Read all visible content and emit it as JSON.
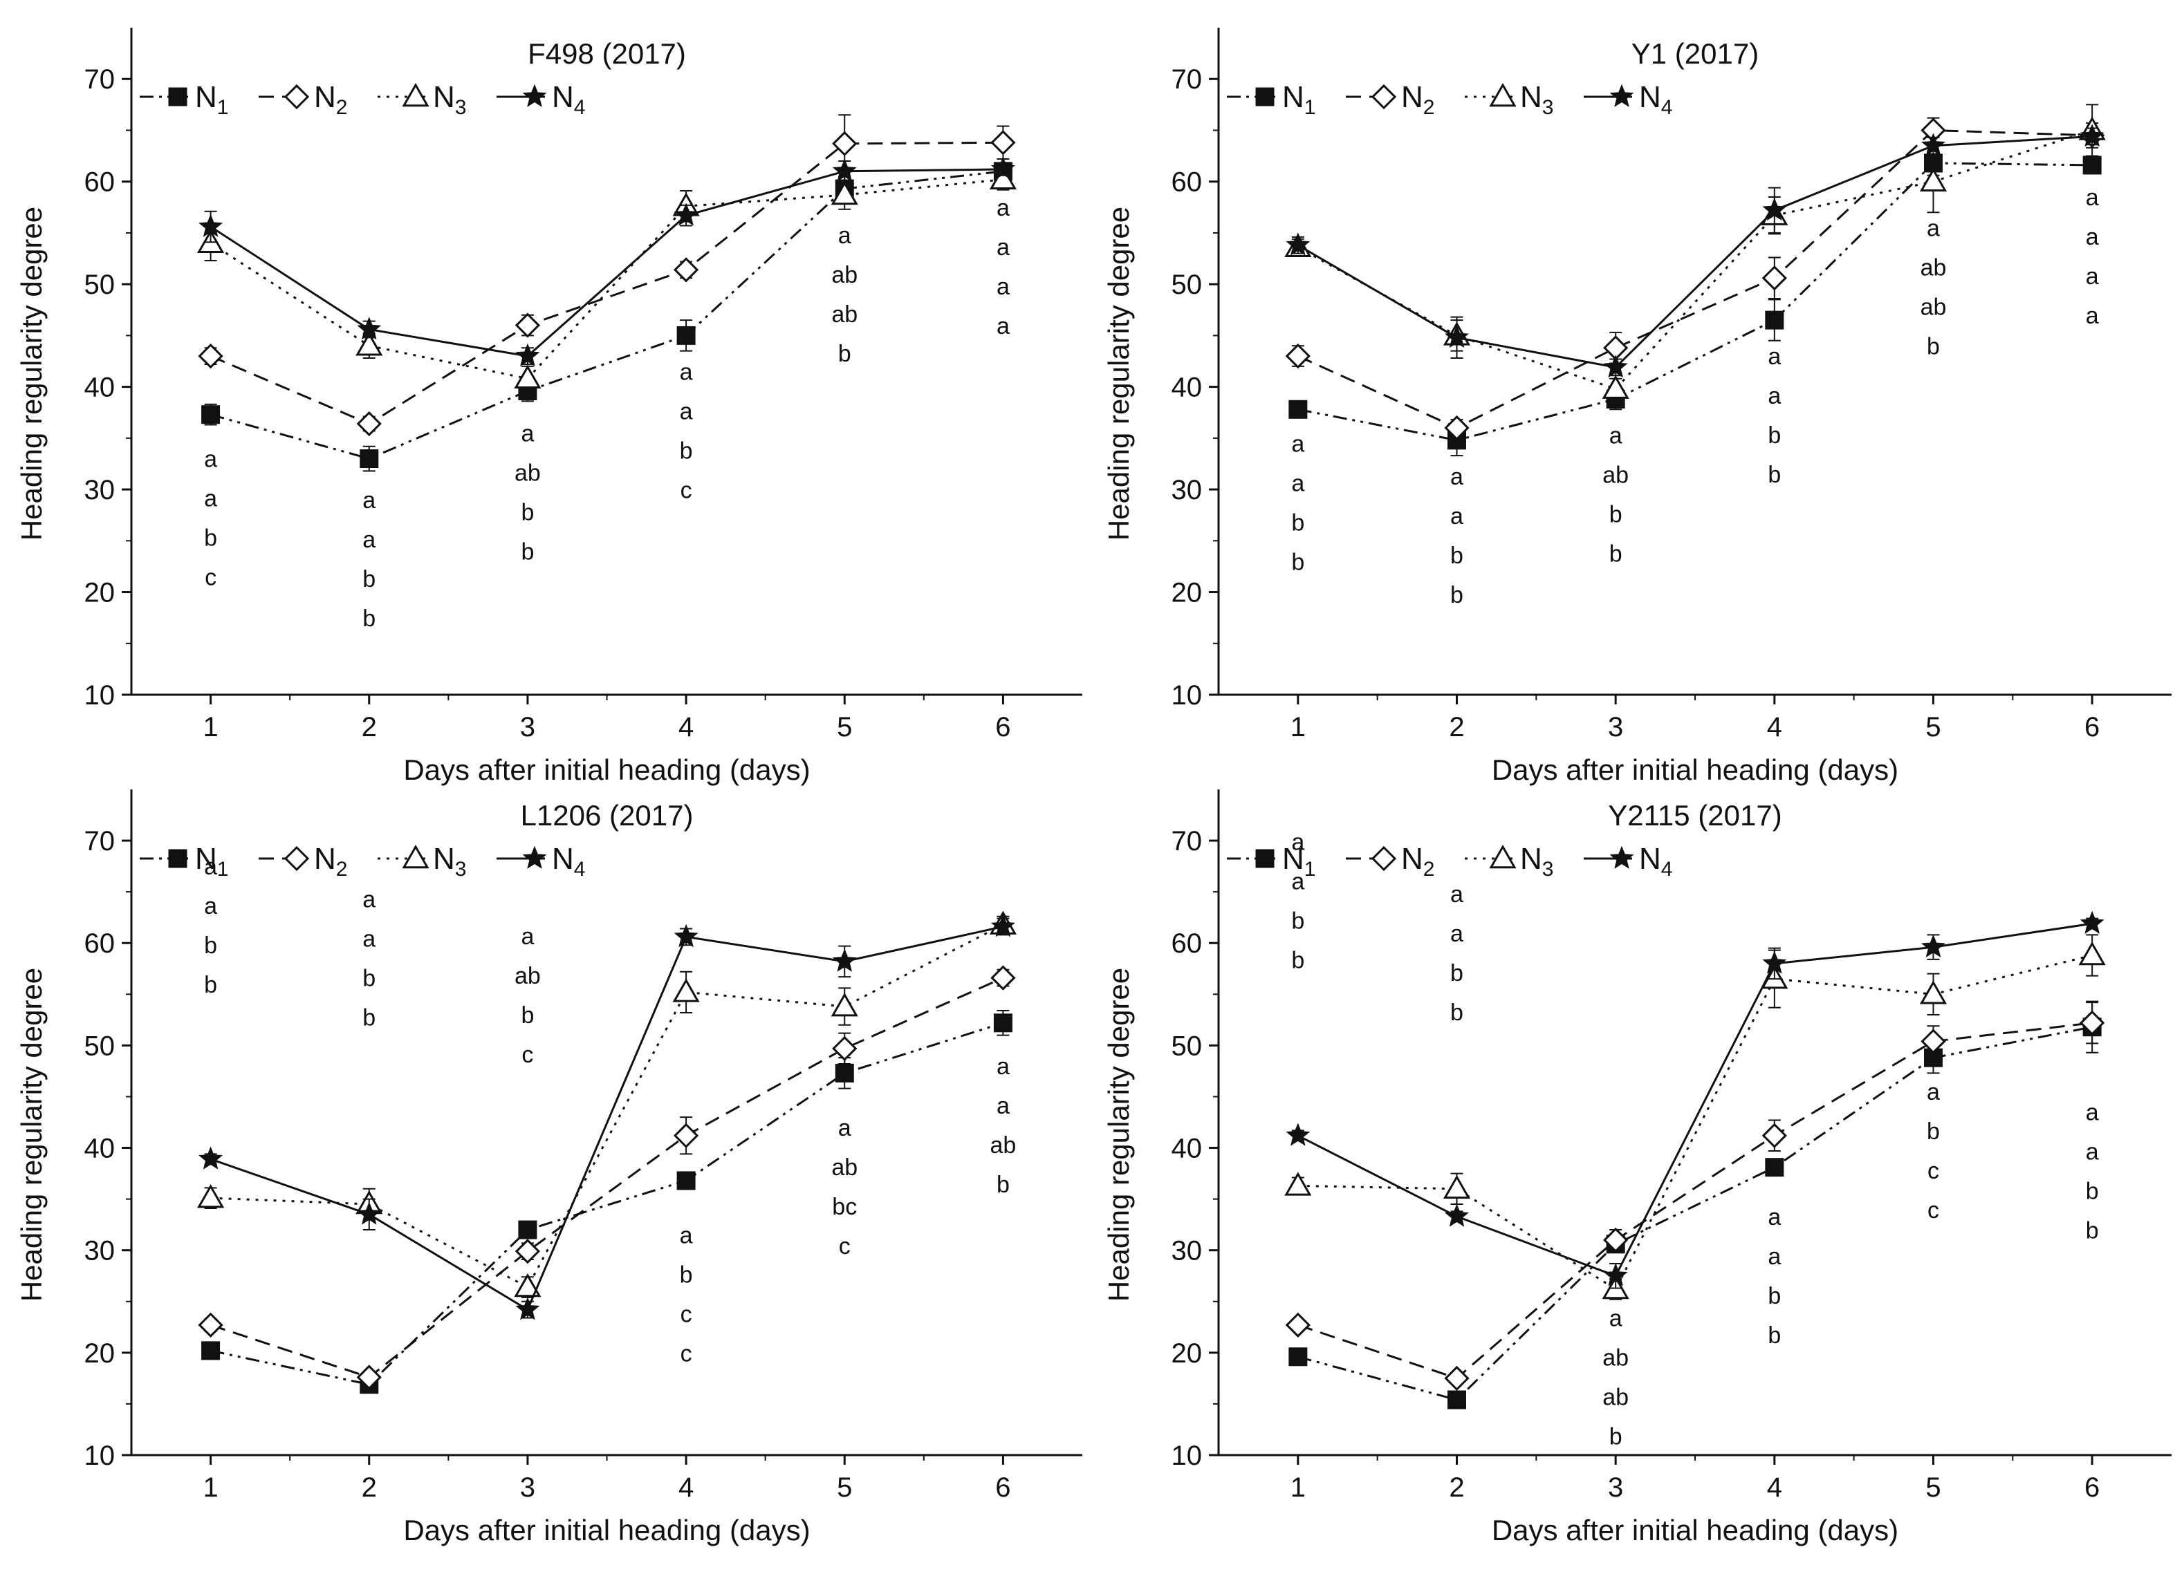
{
  "chart_data": [
    {
      "type": "line",
      "title": "F498 (2017)",
      "xlabel": "Days after initial heading (days)",
      "ylabel": "Heading regularity degree",
      "x": [
        1,
        2,
        3,
        4,
        5,
        6
      ],
      "xlim": [
        0.5,
        6.5
      ],
      "ylim": [
        10,
        75
      ],
      "yticks": [
        10,
        20,
        30,
        40,
        50,
        60,
        70
      ],
      "legend": "top-left",
      "series": [
        {
          "name": "N1",
          "base": "N",
          "sub": "1",
          "marker": "square",
          "dash": "dashdotdot",
          "values": [
            37.3,
            33.0,
            39.6,
            45.0,
            59.3,
            61.0
          ],
          "err": [
            1.0,
            1.2,
            1.0,
            1.5,
            1.2,
            0.8
          ]
        },
        {
          "name": "N2",
          "base": "N",
          "sub": "2",
          "marker": "diamond",
          "dash": "dashed",
          "values": [
            43.0,
            36.4,
            46.0,
            51.4,
            63.7,
            63.8
          ],
          "err": [
            0.8,
            0.7,
            1.0,
            0.8,
            2.8,
            1.6
          ]
        },
        {
          "name": "N3",
          "base": "N",
          "sub": "3",
          "marker": "triangle",
          "dash": "dotted",
          "values": [
            54.0,
            44.0,
            40.8,
            57.6,
            58.7,
            60.2
          ],
          "err": [
            1.7,
            1.2,
            1.2,
            1.5,
            1.4,
            1.0
          ]
        },
        {
          "name": "N4",
          "base": "N",
          "sub": "4",
          "marker": "star",
          "dash": "solid",
          "values": [
            55.6,
            45.6,
            43.0,
            56.7,
            61.0,
            61.2
          ],
          "err": [
            1.5,
            0.8,
            0.8,
            1.0,
            1.0,
            0.6
          ]
        }
      ],
      "letters": [
        {
          "x": 1,
          "y_top": 33.0,
          "items": [
            "a",
            "a",
            "b",
            "c"
          ]
        },
        {
          "x": 2,
          "y_top": 29.0,
          "items": [
            "a",
            "a",
            "b",
            "b"
          ]
        },
        {
          "x": 3,
          "y_top": 35.5,
          "items": [
            "a",
            "ab",
            "b",
            "b"
          ]
        },
        {
          "x": 4,
          "y_top": 41.5,
          "items": [
            "a",
            "a",
            "b",
            "c"
          ]
        },
        {
          "x": 5,
          "y_top": 54.8,
          "items": [
            "a",
            "ab",
            "ab",
            "b"
          ]
        },
        {
          "x": 6,
          "y_top": 57.5,
          "items": [
            "a",
            "a",
            "a",
            "a"
          ]
        }
      ]
    },
    {
      "type": "line",
      "title": "Y1 (2017)",
      "xlabel": "Days after initial heading (days)",
      "ylabel": "Heading regularity degree",
      "x": [
        1,
        2,
        3,
        4,
        5,
        6
      ],
      "xlim": [
        0.5,
        6.5
      ],
      "ylim": [
        10,
        75
      ],
      "yticks": [
        10,
        20,
        30,
        40,
        50,
        60,
        70
      ],
      "legend": "top-left",
      "series": [
        {
          "name": "N1",
          "base": "N",
          "sub": "1",
          "marker": "square",
          "dash": "dashdotdot",
          "values": [
            37.8,
            34.8,
            38.8,
            46.5,
            61.8,
            61.6
          ],
          "err": [
            0.8,
            1.5,
            1.0,
            2.0,
            1.2,
            0.6
          ]
        },
        {
          "name": "N2",
          "base": "N",
          "sub": "2",
          "marker": "diamond",
          "dash": "dashed",
          "values": [
            43.0,
            36.0,
            43.8,
            50.6,
            65.0,
            64.5
          ],
          "err": [
            1.0,
            0.8,
            1.5,
            2.0,
            1.2,
            1.2
          ]
        },
        {
          "name": "N3",
          "base": "N",
          "sub": "3",
          "marker": "triangle",
          "dash": "dotted",
          "values": [
            53.6,
            45.0,
            39.8,
            56.7,
            60.0,
            65.0
          ],
          "err": [
            0.8,
            1.5,
            1.0,
            1.8,
            3.0,
            2.5
          ]
        },
        {
          "name": "N4",
          "base": "N",
          "sub": "4",
          "marker": "star",
          "dash": "solid",
          "values": [
            53.8,
            44.8,
            41.9,
            57.2,
            63.5,
            64.4
          ],
          "err": [
            0.8,
            2.0,
            0.8,
            2.2,
            0.8,
            0.8
          ]
        }
      ],
      "letters": [
        {
          "x": 1,
          "y_top": 34.5,
          "items": [
            "a",
            "a",
            "b",
            "b"
          ]
        },
        {
          "x": 2,
          "y_top": 31.3,
          "items": [
            "a",
            "a",
            "b",
            "b"
          ]
        },
        {
          "x": 3,
          "y_top": 35.3,
          "items": [
            "a",
            "ab",
            "b",
            "b"
          ]
        },
        {
          "x": 4,
          "y_top": 43.0,
          "items": [
            "a",
            "a",
            "b",
            "b"
          ]
        },
        {
          "x": 5,
          "y_top": 55.5,
          "items": [
            "a",
            "ab",
            "ab",
            "b"
          ]
        },
        {
          "x": 6,
          "y_top": 58.5,
          "items": [
            "a",
            "a",
            "a",
            "a"
          ]
        }
      ]
    },
    {
      "type": "line",
      "title": "L1206 (2017)",
      "xlabel": "Days after initial heading (days)",
      "ylabel": "Heading regularity degree",
      "x": [
        1,
        2,
        3,
        4,
        5,
        6
      ],
      "xlim": [
        0.5,
        6.5
      ],
      "ylim": [
        10,
        75
      ],
      "yticks": [
        10,
        20,
        30,
        40,
        50,
        60,
        70
      ],
      "legend": "top-left",
      "series": [
        {
          "name": "N1",
          "base": "N",
          "sub": "1",
          "marker": "square",
          "dash": "dashdotdot",
          "values": [
            20.2,
            16.9,
            32.0,
            36.8,
            47.3,
            52.2
          ],
          "err": [
            0.4,
            0.5,
            0.5,
            0.8,
            1.5,
            1.2
          ]
        },
        {
          "name": "N2",
          "base": "N",
          "sub": "2",
          "marker": "diamond",
          "dash": "dashed",
          "values": [
            22.7,
            17.6,
            29.9,
            41.2,
            49.7,
            56.6
          ],
          "err": [
            0.6,
            0.5,
            0.8,
            1.8,
            1.5,
            0.8
          ]
        },
        {
          "name": "N3",
          "base": "N",
          "sub": "3",
          "marker": "triangle",
          "dash": "dotted",
          "values": [
            35.1,
            34.5,
            26.4,
            55.2,
            53.8,
            61.8
          ],
          "err": [
            1.0,
            1.5,
            1.0,
            2.0,
            1.8,
            0.8
          ]
        },
        {
          "name": "N4",
          "base": "N",
          "sub": "4",
          "marker": "star",
          "dash": "solid",
          "values": [
            38.9,
            33.5,
            24.2,
            60.6,
            58.2,
            61.6
          ],
          "err": [
            0.5,
            1.5,
            0.8,
            0.8,
            1.5,
            0.8
          ]
        }
      ],
      "letters": [
        {
          "x": 1,
          "y_top": 67.5,
          "items": [
            "a",
            "a",
            "b",
            "b"
          ]
        },
        {
          "x": 2,
          "y_top": 64.3,
          "items": [
            "a",
            "a",
            "b",
            "b"
          ]
        },
        {
          "x": 3,
          "y_top": 60.7,
          "items": [
            "a",
            "ab",
            "b",
            "c"
          ]
        },
        {
          "x": 4,
          "y_top": 31.5,
          "items": [
            "a",
            "b",
            "c",
            "c"
          ]
        },
        {
          "x": 5,
          "y_top": 42.0,
          "items": [
            "a",
            "ab",
            "bc",
            "c"
          ]
        },
        {
          "x": 6,
          "y_top": 48.0,
          "items": [
            "a",
            "a",
            "ab",
            "b"
          ]
        }
      ]
    },
    {
      "type": "line",
      "title": "Y2115 (2017)",
      "xlabel": "Days after initial heading (days)",
      "ylabel": "Heading regularity degree",
      "x": [
        1,
        2,
        3,
        4,
        5,
        6
      ],
      "xlim": [
        0.5,
        6.5
      ],
      "ylim": [
        10,
        75
      ],
      "yticks": [
        10,
        20,
        30,
        40,
        50,
        60,
        70
      ],
      "legend": "top-left",
      "series": [
        {
          "name": "N1",
          "base": "N",
          "sub": "1",
          "marker": "square",
          "dash": "dashdotdot",
          "values": [
            19.6,
            15.4,
            30.6,
            38.1,
            48.8,
            51.8
          ],
          "err": [
            0.4,
            0.5,
            0.8,
            0.8,
            1.5,
            2.5
          ]
        },
        {
          "name": "N2",
          "base": "N",
          "sub": "2",
          "marker": "diamond",
          "dash": "dashed",
          "values": [
            22.7,
            17.5,
            31.0,
            41.2,
            50.4,
            52.2
          ],
          "err": [
            0.5,
            0.5,
            1.0,
            1.5,
            1.5,
            2.0
          ]
        },
        {
          "name": "N3",
          "base": "N",
          "sub": "3",
          "marker": "triangle",
          "dash": "dotted",
          "values": [
            36.3,
            36.0,
            26.2,
            56.5,
            55.0,
            58.8
          ],
          "err": [
            0.8,
            1.5,
            1.0,
            2.8,
            2.0,
            2.0
          ]
        },
        {
          "name": "N4",
          "base": "N",
          "sub": "4",
          "marker": "star",
          "dash": "solid",
          "values": [
            41.2,
            33.3,
            27.5,
            58.0,
            59.6,
            61.9
          ],
          "err": [
            0.5,
            0.5,
            1.2,
            1.5,
            1.2,
            0.5
          ]
        }
      ],
      "letters": [
        {
          "x": 1,
          "y_top": 69.9,
          "items": [
            "a",
            "a",
            "b",
            "b"
          ]
        },
        {
          "x": 2,
          "y_top": 64.8,
          "items": [
            "a",
            "a",
            "b",
            "b"
          ]
        },
        {
          "x": 3,
          "y_top": 23.4,
          "items": [
            "a",
            "ab",
            "ab",
            "b"
          ]
        },
        {
          "x": 4,
          "y_top": 33.3,
          "items": [
            "a",
            "a",
            "b",
            "b"
          ]
        },
        {
          "x": 5,
          "y_top": 45.5,
          "items": [
            "a",
            "b",
            "c",
            "c"
          ]
        },
        {
          "x": 6,
          "y_top": 43.5,
          "items": [
            "a",
            "a",
            "b",
            "b"
          ]
        }
      ]
    }
  ]
}
